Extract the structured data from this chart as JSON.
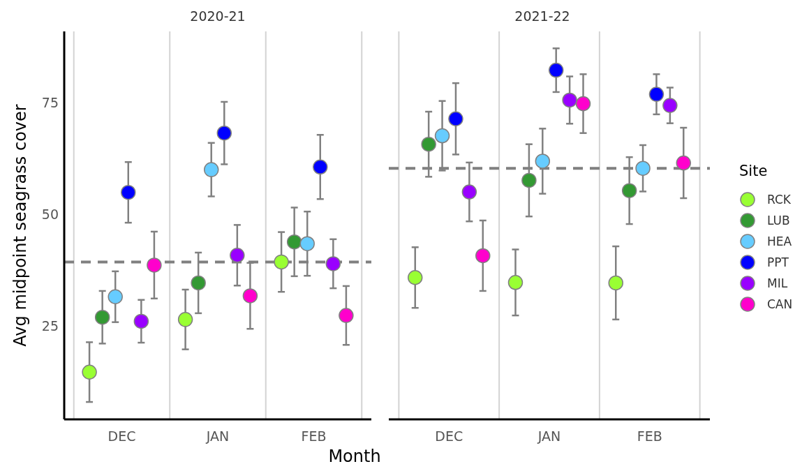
{
  "chart_data": [
    {
      "type": "scatter",
      "title": "2020-21",
      "xlabel": "Month",
      "ylabel": "Avg midpoint seagrass cover",
      "categories": [
        "DEC",
        "JAN",
        "FEB"
      ],
      "ylim": [
        4,
        91
      ],
      "yticks": [
        25,
        50,
        75
      ],
      "grid": "x",
      "marker": "circle",
      "series": [
        {
          "color": "#99ff33",
          "values": [
            14.6,
            26.4,
            39.3
          ],
          "errors": [
            6.7,
            6.7,
            6.7
          ]
        },
        {
          "color": "#339933",
          "values": [
            26.9,
            34.6,
            43.8
          ],
          "errors": [
            5.9,
            6.8,
            7.7
          ]
        },
        {
          "color": "#66ccff",
          "values": [
            31.5,
            60.0,
            43.4
          ],
          "errors": [
            5.7,
            6.0,
            7.2
          ]
        },
        {
          "color": "#0000ff",
          "values": [
            54.9,
            68.2,
            60.6
          ],
          "errors": [
            6.8,
            7.0,
            7.2
          ]
        },
        {
          "color": "#9900ff",
          "values": [
            26.0,
            40.8,
            38.9
          ],
          "errors": [
            4.8,
            6.8,
            5.5
          ]
        },
        {
          "color": "#ff00cc",
          "values": [
            38.6,
            31.7,
            27.3
          ],
          "errors": [
            7.5,
            7.4,
            6.6
          ]
        }
      ],
      "ref_lines": [
        {
          "axis": "y",
          "value": 39.3,
          "color": "#808080",
          "line_style": "dashed"
        }
      ]
    },
    {
      "type": "scatter",
      "title": "2021-22",
      "categories": [
        "DEC",
        "JAN",
        "FEB"
      ],
      "ylim": [
        4,
        91
      ],
      "yticks": [
        25,
        50,
        75
      ],
      "tick_labels": "x",
      "grid": "x",
      "marker": "circle",
      "legend": "right",
      "legend_title": "Site",
      "series": [
        {
          "name": "RCK",
          "color": "#99ff33",
          "values": [
            35.8,
            34.7,
            34.6
          ],
          "errors": [
            6.8,
            7.4,
            8.2
          ]
        },
        {
          "name": "LUB",
          "color": "#339933",
          "values": [
            65.7,
            57.6,
            55.3
          ],
          "errors": [
            7.3,
            8.1,
            7.5
          ]
        },
        {
          "name": "HEA",
          "color": "#66ccff",
          "values": [
            67.6,
            61.9,
            60.3
          ],
          "errors": [
            7.8,
            7.3,
            5.2
          ]
        },
        {
          "name": "PPT",
          "color": "#0000ff",
          "values": [
            71.4,
            82.3,
            76.9
          ],
          "errors": [
            8.0,
            4.9,
            4.5
          ]
        },
        {
          "name": "MIL",
          "color": "#9900ff",
          "values": [
            55.0,
            75.6,
            74.4
          ],
          "errors": [
            6.6,
            5.3,
            4.0
          ]
        },
        {
          "name": "CAN",
          "color": "#ff00cc",
          "values": [
            40.7,
            74.8,
            61.5
          ],
          "errors": [
            7.9,
            6.6,
            7.9
          ]
        }
      ],
      "ref_lines": [
        {
          "axis": "y",
          "value": 60.3,
          "color": "#808080",
          "line_style": "dashed"
        }
      ]
    }
  ]
}
